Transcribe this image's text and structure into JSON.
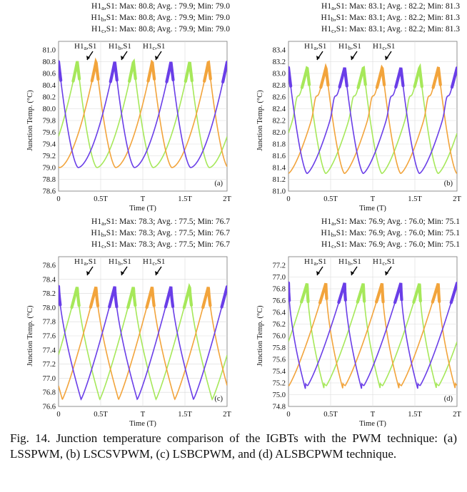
{
  "figure": {
    "caption": "Fig. 14. Junction temperature comparison of the IGBTs with the PWM technique: (a) LSSPWM, (b) LSCSVPWM, (c) LSBCPWM, and (d) ALSBCPWM technique."
  },
  "chart_data": [
    {
      "type": "line",
      "panel_label": "(a)",
      "xlabel": "Time (T)",
      "ylabel": "Junction Temp. (°C)",
      "x_ticks": [
        "0",
        "0.5T",
        "T",
        "1.5T",
        "2T"
      ],
      "xlim": [
        0,
        2
      ],
      "ylim": [
        78.6,
        81.0
      ],
      "y_ticks": [
        "78.6",
        "78.8",
        "79.0",
        "79.2",
        "79.4",
        "79.6",
        "79.8",
        "80.0",
        "80.2",
        "80.4",
        "80.6",
        "80.8",
        "81.0"
      ],
      "stats": [
        "H1a,S1: Max: 80.8; Avg. : 79.9; Min: 79.0",
        "H1b,S1: Max: 80.8; Avg. : 79.9; Min: 79.0",
        "H1c,S1: Max: 80.8; Avg. : 79.9; Min: 79.0"
      ],
      "callouts": [
        "H1a,S1",
        "H1b,S1",
        "H1c,S1"
      ],
      "shape": "smooth",
      "series": [
        {
          "name": "H1a,S1",
          "color": "#a6e85a",
          "max": 80.8,
          "avg": 79.9,
          "min": 79.0,
          "peak_phase": 0.333
        },
        {
          "name": "H1b,S1",
          "color": "#f2a43c",
          "max": 80.8,
          "avg": 79.9,
          "min": 79.0,
          "peak_phase": 0.667
        },
        {
          "name": "H1c,S1",
          "color": "#6a3ee8",
          "max": 80.8,
          "avg": 79.9,
          "min": 79.0,
          "peak_phase": 0.0
        }
      ]
    },
    {
      "type": "line",
      "panel_label": "(b)",
      "xlabel": "Time (T)",
      "ylabel": "Junction Temp. (°C)",
      "x_ticks": [
        "0",
        "0.5T",
        "T",
        "1.5T",
        "2T"
      ],
      "xlim": [
        0,
        2
      ],
      "ylim": [
        81.0,
        83.4
      ],
      "y_ticks": [
        "81.0",
        "81.2",
        "81.4",
        "81.6",
        "81.8",
        "82.0",
        "82.2",
        "82.4",
        "82.6",
        "82.8",
        "83.0",
        "83.2",
        "83.4"
      ],
      "stats": [
        "H1a,S1: Max: 83.1; Avg. : 82.2; Min: 81.3",
        "H1b,S1: Max: 83.1; Avg. : 82.2; Min: 81.3",
        "H1c,S1: Max: 83.1; Avg. : 82.2; Min: 81.3"
      ],
      "callouts": [
        "H1a,S1",
        "H1b,S1",
        "H1c,S1"
      ],
      "shape": "shoulder",
      "series": [
        {
          "name": "H1a,S1",
          "color": "#a6e85a",
          "max": 83.1,
          "avg": 82.2,
          "min": 81.3,
          "peak_phase": 0.333
        },
        {
          "name": "H1b,S1",
          "color": "#f2a43c",
          "max": 83.1,
          "avg": 82.2,
          "min": 81.3,
          "peak_phase": 0.667
        },
        {
          "name": "H1c,S1",
          "color": "#6a3ee8",
          "max": 83.1,
          "avg": 82.2,
          "min": 81.3,
          "peak_phase": 0.0
        }
      ]
    },
    {
      "type": "line",
      "panel_label": "(c)",
      "xlabel": "Time (T)",
      "ylabel": "Junction Temp. (°C)",
      "x_ticks": [
        "0",
        "0.5T",
        "T",
        "1.5T",
        "2T"
      ],
      "xlim": [
        0,
        2
      ],
      "ylim": [
        76.6,
        78.6
      ],
      "y_ticks": [
        "76.6",
        "76.8",
        "77.0",
        "77.2",
        "77.4",
        "77.6",
        "77.8",
        "78.0",
        "78.2",
        "78.4",
        "78.6"
      ],
      "stats": [
        "H1a,S1: Max: 78.3; Avg. : 77.5; Min: 76.7",
        "H1b,S1: Max: 78.3; Avg. : 77.5; Min: 76.7",
        "H1c,S1: Max: 78.3; Avg. : 77.5; Min: 76.7"
      ],
      "callouts": [
        "H1a,S1",
        "H1b,S1",
        "H1c,S1"
      ],
      "shape": "sawtooth",
      "series": [
        {
          "name": "H1a,S1",
          "color": "#a6e85a",
          "max": 78.3,
          "avg": 77.5,
          "min": 76.7,
          "peak_phase": 0.333
        },
        {
          "name": "H1b,S1",
          "color": "#f2a43c",
          "max": 78.3,
          "avg": 77.5,
          "min": 76.7,
          "peak_phase": 0.667
        },
        {
          "name": "H1c,S1",
          "color": "#6a3ee8",
          "max": 78.3,
          "avg": 77.5,
          "min": 76.7,
          "peak_phase": 0.0
        }
      ]
    },
    {
      "type": "line",
      "panel_label": "(d)",
      "xlabel": "Time (T)",
      "ylabel": "Junction Temp. (°C)",
      "x_ticks": [
        "0",
        "0.5T",
        "T",
        "1.5T",
        "2T"
      ],
      "xlim": [
        0,
        2
      ],
      "ylim": [
        74.8,
        77.2
      ],
      "y_ticks": [
        "74.8",
        "75.0",
        "75.2",
        "75.4",
        "75.6",
        "75.8",
        "76.0",
        "76.2",
        "76.4",
        "76.6",
        "76.8",
        "77.0",
        "77.2"
      ],
      "stats": [
        "H1a,S1: Max: 76.9; Avg. : 76.0; Min: 75.1",
        "H1b,S1: Max: 76.9; Avg. : 76.0; Min: 75.1",
        "H1c,S1: Max: 76.9; Avg. : 76.0; Min: 75.1"
      ],
      "callouts": [
        "H1a,S1",
        "H1b,S1",
        "H1c,S1"
      ],
      "shape": "sharp",
      "series": [
        {
          "name": "H1a,S1",
          "color": "#a6e85a",
          "max": 76.9,
          "avg": 76.0,
          "min": 75.1,
          "peak_phase": 0.333
        },
        {
          "name": "H1b,S1",
          "color": "#f2a43c",
          "max": 76.9,
          "avg": 76.0,
          "min": 75.1,
          "peak_phase": 0.667
        },
        {
          "name": "H1c,S1",
          "color": "#6a3ee8",
          "max": 76.9,
          "avg": 76.0,
          "min": 75.1,
          "peak_phase": 0.0
        }
      ]
    }
  ]
}
